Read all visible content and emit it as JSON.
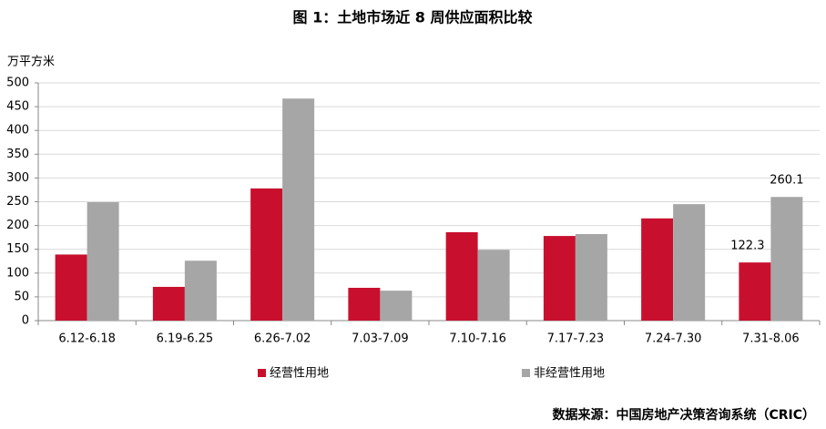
{
  "chart_data": {
    "type": "bar",
    "title": "图 1：土地市场近 8 周供应面积比较",
    "y_label": "万平方米",
    "source": "数据来源：中国房地产决策咨询系统（CRIC）",
    "categories": [
      "6.12-6.18",
      "6.19-6.25",
      "6.26-7.02",
      "7.03-7.09",
      "7.10-7.16",
      "7.17-7.23",
      "7.24-7.30",
      "7.31-8.06"
    ],
    "series": [
      {
        "name": "经营性用地",
        "color": "#c8102e",
        "values": [
          139,
          71,
          278,
          69,
          186,
          178,
          215,
          122.3
        ]
      },
      {
        "name": "非经营性用地",
        "color": "#a6a6a6",
        "values": [
          249,
          126,
          467,
          63,
          149,
          182,
          245,
          260.1
        ]
      }
    ],
    "ylim": [
      0,
      500
    ],
    "yticks": [
      0,
      50,
      100,
      150,
      200,
      250,
      300,
      350,
      400,
      450,
      500
    ],
    "grid": true,
    "legend": "bottom"
  }
}
